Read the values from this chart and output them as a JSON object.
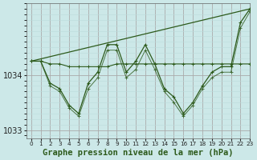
{
  "xlabel": "Graphe pression niveau de la mer (hPa)",
  "bg_color": "#cce8e8",
  "grid_color_major": "#aaaaaa",
  "grid_color_minor": "#bbdddd",
  "line_color": "#2d5a1b",
  "ylim": [
    1032.85,
    1035.3
  ],
  "xlim": [
    -0.5,
    23
  ],
  "yticks": [
    1033,
    1034
  ],
  "xticks": [
    0,
    1,
    2,
    3,
    4,
    5,
    6,
    7,
    8,
    9,
    10,
    11,
    12,
    13,
    14,
    15,
    16,
    17,
    18,
    19,
    20,
    21,
    22,
    23
  ],
  "series1_x": [
    0,
    1,
    2,
    3,
    4,
    5,
    6,
    7,
    8,
    9,
    10,
    11,
    12,
    13,
    14,
    15,
    16,
    17,
    18,
    19,
    20,
    21,
    22,
    23
  ],
  "series1_y": [
    1034.25,
    1034.25,
    1033.85,
    1033.75,
    1033.45,
    1033.3,
    1033.85,
    1034.05,
    1034.55,
    1034.55,
    1034.05,
    1034.25,
    1034.55,
    1034.2,
    1033.75,
    1033.6,
    1033.3,
    1033.5,
    1033.8,
    1034.05,
    1034.15,
    1034.15,
    1034.95,
    1035.2
  ],
  "series2_x": [
    0,
    1,
    2,
    3,
    4,
    5,
    6,
    7,
    8,
    9,
    10,
    11,
    12,
    13,
    14,
    15,
    16,
    17,
    18,
    19,
    20,
    21,
    22,
    23
  ],
  "series2_y": [
    1034.25,
    1034.25,
    1033.8,
    1033.7,
    1033.4,
    1033.25,
    1033.75,
    1033.95,
    1034.45,
    1034.45,
    1033.95,
    1034.1,
    1034.45,
    1034.1,
    1033.7,
    1033.5,
    1033.25,
    1033.45,
    1033.75,
    1033.95,
    1034.05,
    1034.05,
    1034.85,
    1035.15
  ],
  "flat_series_x": [
    0,
    1,
    2,
    3,
    4,
    5,
    6,
    7,
    8,
    9,
    10,
    11,
    12,
    13,
    14,
    15,
    16,
    17,
    18,
    19,
    20,
    21,
    22,
    23
  ],
  "flat_series_y": [
    1034.25,
    1034.25,
    1034.2,
    1034.2,
    1034.15,
    1034.15,
    1034.15,
    1034.15,
    1034.15,
    1034.2,
    1034.2,
    1034.2,
    1034.2,
    1034.2,
    1034.2,
    1034.2,
    1034.2,
    1034.2,
    1034.2,
    1034.2,
    1034.2,
    1034.2,
    1034.2,
    1034.2
  ],
  "trend_x": [
    0,
    23
  ],
  "trend_y": [
    1034.25,
    1035.2
  ],
  "font_size_xlabel": 7.5,
  "font_size_ytick": 7,
  "font_size_xtick": 5.2
}
